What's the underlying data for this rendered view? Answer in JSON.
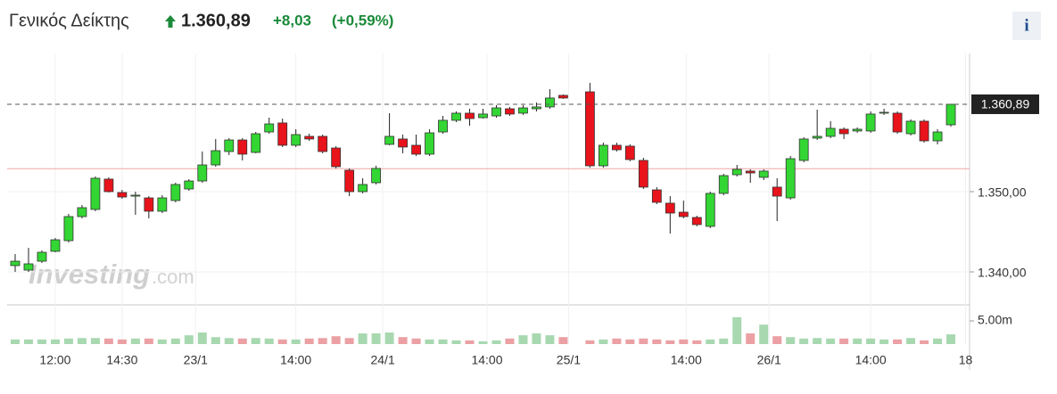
{
  "header": {
    "title": "Γενικός Δείκτης",
    "price": "1.360,89",
    "change": "+8,03",
    "change_pct": "(+0,59%)",
    "info": "i"
  },
  "chart_data": {
    "type": "candlestick",
    "watermark": {
      "brand": "Investing",
      "suffix": ".com"
    },
    "up_color": "#33d633",
    "down_color": "#e8131b",
    "up_volume_color": "#a8d8b0",
    "down_volume_color": "#eba0a4",
    "ylim": [
      1336.11,
      1367.22
    ],
    "yticks": [
      {
        "value": 1340,
        "label": "1.340,00"
      },
      {
        "value": 1350,
        "label": "1.350,00"
      }
    ],
    "last_price": {
      "value": 1360.89,
      "label": "1.360,89"
    },
    "prev_close": 1352.86,
    "vlim": [
      0,
      8.27
    ],
    "vticks": [
      {
        "value": 5,
        "label": "5.00m"
      }
    ],
    "xlim": [
      -0.6,
      71.4
    ],
    "xticks": [
      {
        "value": 3,
        "label": "12:00"
      },
      {
        "value": 8,
        "label": "14:30"
      },
      {
        "value": 13.5,
        "label": "23/1"
      },
      {
        "value": 21,
        "label": "14:00"
      },
      {
        "value": 27.5,
        "label": "24/1"
      },
      {
        "value": 35.3,
        "label": "14:00"
      },
      {
        "value": 41.4,
        "label": "25/1"
      },
      {
        "value": 50.2,
        "label": "14:00"
      },
      {
        "value": 56.4,
        "label": "26/1"
      },
      {
        "value": 64,
        "label": "14:00"
      },
      {
        "value": 71.1,
        "label": "18"
      }
    ],
    "x": [
      0,
      1,
      2,
      3,
      4,
      5,
      6,
      7,
      8,
      9,
      10,
      11,
      12,
      13,
      14,
      15,
      16,
      17,
      18,
      19,
      20,
      21,
      22,
      23,
      24,
      25,
      26,
      27,
      28,
      29,
      30,
      31,
      32,
      33,
      34,
      35,
      36,
      37,
      38,
      39,
      40,
      41,
      43,
      44,
      45,
      46,
      47,
      48,
      49,
      50,
      51,
      52,
      53,
      54,
      55,
      56,
      57,
      58,
      59,
      60,
      61,
      62,
      63,
      64,
      65,
      66,
      67,
      68,
      69,
      70
    ],
    "open": [
      1340.78,
      1340.22,
      1341.33,
      1342.56,
      1343.89,
      1346.89,
      1347.78,
      1351.56,
      1349.89,
      1349.44,
      1349.22,
      1347.56,
      1348.89,
      1350.33,
      1351.33,
      1353.33,
      1355.0,
      1356.44,
      1354.89,
      1357.44,
      1358.56,
      1355.78,
      1356.89,
      1356.89,
      1355.44,
      1352.67,
      1350.0,
      1351.11,
      1355.89,
      1356.56,
      1355.78,
      1354.67,
      1357.44,
      1358.89,
      1359.78,
      1359.22,
      1359.44,
      1360.33,
      1359.78,
      1360.33,
      1360.56,
      1362.0,
      1362.44,
      1353.22,
      1355.78,
      1355.67,
      1353.89,
      1350.22,
      1348.56,
      1347.44,
      1346.78,
      1345.67,
      1349.78,
      1352.11,
      1352.56,
      1351.78,
      1350.56,
      1349.22,
      1353.89,
      1356.67,
      1356.89,
      1357.78,
      1357.56,
      1357.56,
      1359.78,
      1359.78,
      1357.22,
      1358.78,
      1356.33,
      1358.33
    ],
    "high": [
      1342.22,
      1343.0,
      1342.67,
      1344.22,
      1347.22,
      1348.33,
      1351.89,
      1351.78,
      1350.22,
      1350.0,
      1349.44,
      1349.56,
      1351.11,
      1351.56,
      1355.0,
      1356.56,
      1356.67,
      1356.67,
      1357.44,
      1359.22,
      1359.11,
      1357.78,
      1357.22,
      1357.11,
      1355.67,
      1352.89,
      1351.67,
      1353.22,
      1359.78,
      1357.11,
      1357.11,
      1357.78,
      1359.44,
      1360.0,
      1360.33,
      1360.33,
      1360.78,
      1360.56,
      1360.78,
      1361.11,
      1362.78,
      1362.11,
      1363.56,
      1356.11,
      1356.11,
      1355.89,
      1354.22,
      1350.56,
      1349.44,
      1348.89,
      1347.0,
      1350.0,
      1352.22,
      1353.33,
      1352.78,
      1352.78,
      1351.67,
      1354.44,
      1356.78,
      1360.22,
      1358.78,
      1358.0,
      1358.0,
      1360.0,
      1360.33,
      1360.0,
      1359.0,
      1359.0,
      1357.78,
      1360.89
    ],
    "low": [
      1340.0,
      1340.0,
      1341.11,
      1342.44,
      1343.67,
      1346.67,
      1347.56,
      1349.89,
      1349.11,
      1347.11,
      1346.67,
      1347.33,
      1348.67,
      1350.11,
      1351.11,
      1353.11,
      1354.56,
      1353.89,
      1354.78,
      1357.22,
      1355.56,
      1355.56,
      1356.33,
      1354.78,
      1352.89,
      1349.44,
      1349.78,
      1350.89,
      1355.78,
      1354.78,
      1354.44,
      1354.44,
      1357.22,
      1358.67,
      1358.22,
      1359.11,
      1359.22,
      1359.44,
      1359.56,
      1360.0,
      1360.33,
      1361.56,
      1353.0,
      1353.0,
      1355.0,
      1353.78,
      1350.33,
      1348.44,
      1344.78,
      1346.67,
      1345.67,
      1345.44,
      1349.56,
      1351.89,
      1351.11,
      1351.44,
      1346.33,
      1349.0,
      1353.67,
      1356.44,
      1356.67,
      1356.56,
      1357.33,
      1357.33,
      1359.56,
      1357.22,
      1357.0,
      1356.11,
      1355.89,
      1358.11
    ],
    "close": [
      1341.33,
      1341.0,
      1342.44,
      1344.0,
      1346.89,
      1348.0,
      1351.67,
      1350.0,
      1349.33,
      1349.56,
      1347.56,
      1349.22,
      1350.89,
      1351.33,
      1353.33,
      1355.11,
      1356.44,
      1354.67,
      1357.22,
      1358.44,
      1355.78,
      1357.11,
      1356.56,
      1355.0,
      1353.11,
      1350.0,
      1350.89,
      1352.89,
      1356.89,
      1355.56,
      1354.67,
      1357.33,
      1358.89,
      1359.78,
      1359.11,
      1359.67,
      1360.44,
      1359.67,
      1360.44,
      1360.56,
      1361.67,
      1361.67,
      1353.22,
      1355.78,
      1355.22,
      1354.0,
      1350.56,
      1348.67,
      1347.33,
      1346.89,
      1345.89,
      1349.78,
      1352.0,
      1352.78,
      1352.33,
      1352.56,
      1349.44,
      1354.11,
      1356.56,
      1356.89,
      1357.89,
      1357.22,
      1357.78,
      1359.67,
      1359.89,
      1357.44,
      1358.78,
      1356.33,
      1357.44,
      1360.89
    ],
    "volume": [
      1.0,
      1.0,
      1.0,
      1.0,
      1.2,
      1.3,
      1.3,
      1.2,
      1.0,
      1.2,
      1.2,
      1.0,
      1.2,
      1.9,
      2.5,
      1.5,
      1.3,
      1.2,
      1.3,
      1.2,
      1.0,
      1.0,
      1.2,
      1.3,
      1.7,
      1.3,
      2.3,
      2.3,
      2.5,
      1.5,
      1.2,
      1.0,
      1.0,
      0.8,
      0.8,
      0.6,
      0.8,
      1.2,
      1.9,
      2.3,
      1.9,
      1.5,
      0.8,
      1.0,
      1.2,
      1.0,
      1.2,
      1.0,
      0.8,
      1.0,
      0.8,
      1.0,
      1.2,
      5.8,
      2.3,
      4.2,
      1.7,
      1.5,
      1.2,
      1.3,
      1.2,
      1.2,
      1.2,
      1.2,
      1.0,
      1.0,
      1.3,
      0.8,
      1.2,
      2.1
    ]
  }
}
